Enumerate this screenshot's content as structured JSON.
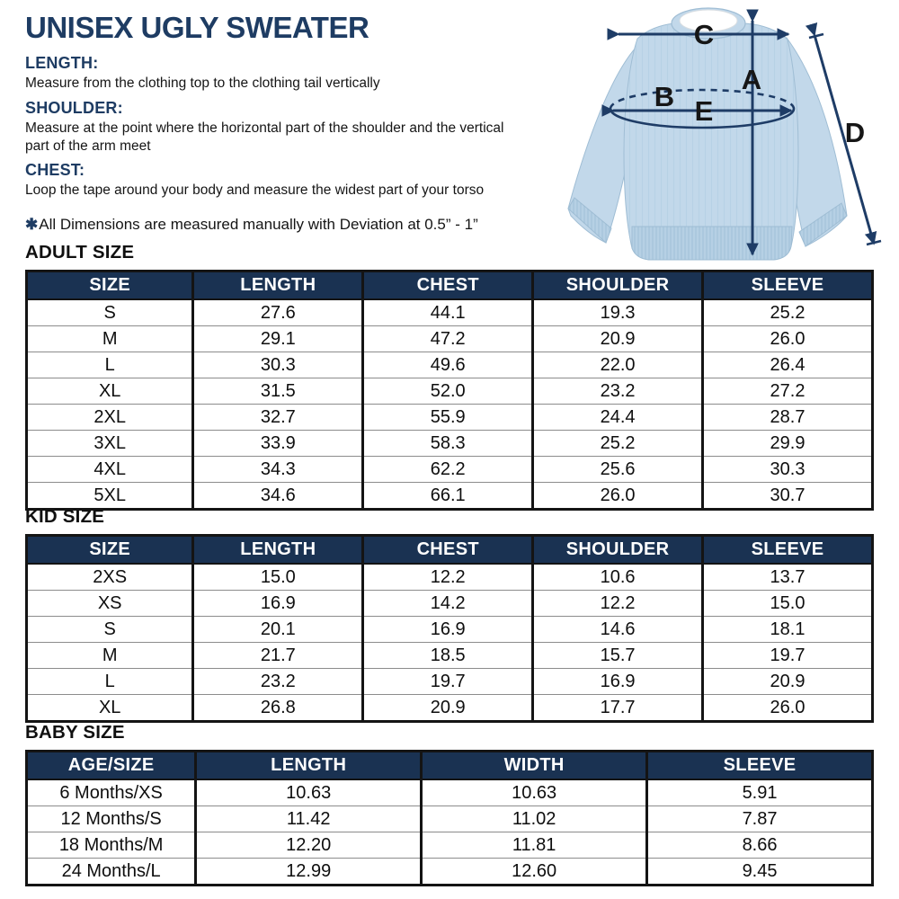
{
  "page_title": "UNISEX UGLY SWEATER",
  "definitions": [
    {
      "term": "LENGTH:",
      "text": "Measure from the clothing top to the clothing tail vertically"
    },
    {
      "term": "SHOULDER:",
      "text": "Measure at the point where the horizontal part of the shoulder and the vertical part of the arm meet"
    },
    {
      "term": "CHEST:",
      "text": "Loop the tape around your body and measure the widest part of your torso"
    }
  ],
  "note": {
    "symbol": "✱",
    "text": "All Dimensions are measured manually with Deviation at 0.5” - 1”"
  },
  "diagram": {
    "labels": {
      "a": "A",
      "b": "B",
      "c": "C",
      "d": "D",
      "e": "E"
    },
    "sweater_color": "#c2d8ea",
    "arrow_color": "#1e3c66"
  },
  "tables": [
    {
      "id": "adult",
      "section_title": "ADULT SIZE",
      "headers": [
        "SIZE",
        "LENGTH",
        "CHEST",
        "SHOULDER",
        "SLEEVE"
      ],
      "rows": [
        [
          "S",
          "27.6",
          "44.1",
          "19.3",
          "25.2"
        ],
        [
          "M",
          "29.1",
          "47.2",
          "20.9",
          "26.0"
        ],
        [
          "L",
          "30.3",
          "49.6",
          "22.0",
          "26.4"
        ],
        [
          "XL",
          "31.5",
          "52.0",
          "23.2",
          "27.2"
        ],
        [
          "2XL",
          "32.7",
          "55.9",
          "24.4",
          "28.7"
        ],
        [
          "3XL",
          "33.9",
          "58.3",
          "25.2",
          "29.9"
        ],
        [
          "4XL",
          "34.3",
          "62.2",
          "25.6",
          "30.3"
        ],
        [
          "5XL",
          "34.6",
          "66.1",
          "26.0",
          "30.7"
        ]
      ]
    },
    {
      "id": "kid",
      "section_title": "KID SIZE",
      "headers": [
        "SIZE",
        "LENGTH",
        "CHEST",
        "SHOULDER",
        "SLEEVE"
      ],
      "rows": [
        [
          "2XS",
          "15.0",
          "12.2",
          "10.6",
          "13.7"
        ],
        [
          "XS",
          "16.9",
          "14.2",
          "12.2",
          "15.0"
        ],
        [
          "S",
          "20.1",
          "16.9",
          "14.6",
          "18.1"
        ],
        [
          "M",
          "21.7",
          "18.5",
          "15.7",
          "19.7"
        ],
        [
          "L",
          "23.2",
          "19.7",
          "16.9",
          "20.9"
        ],
        [
          "XL",
          "26.8",
          "20.9",
          "17.7",
          "26.0"
        ]
      ]
    },
    {
      "id": "baby",
      "section_title": "BABY SIZE",
      "headers": [
        "AGE/SIZE",
        "LENGTH",
        "WIDTH",
        "SLEEVE"
      ],
      "rows": [
        [
          "6 Months/XS",
          "10.63",
          "10.63",
          "5.91"
        ],
        [
          "12 Months/S",
          "11.42",
          "11.02",
          "7.87"
        ],
        [
          "18 Months/M",
          "12.20",
          "11.81",
          "8.66"
        ],
        [
          "24 Months/L",
          "12.99",
          "12.60",
          "9.45"
        ]
      ]
    }
  ],
  "colors": {
    "navy_header": "#1a3252",
    "navy_text": "#1e3c63",
    "table_border": "#141414",
    "row_line": "#8c8c8c"
  }
}
